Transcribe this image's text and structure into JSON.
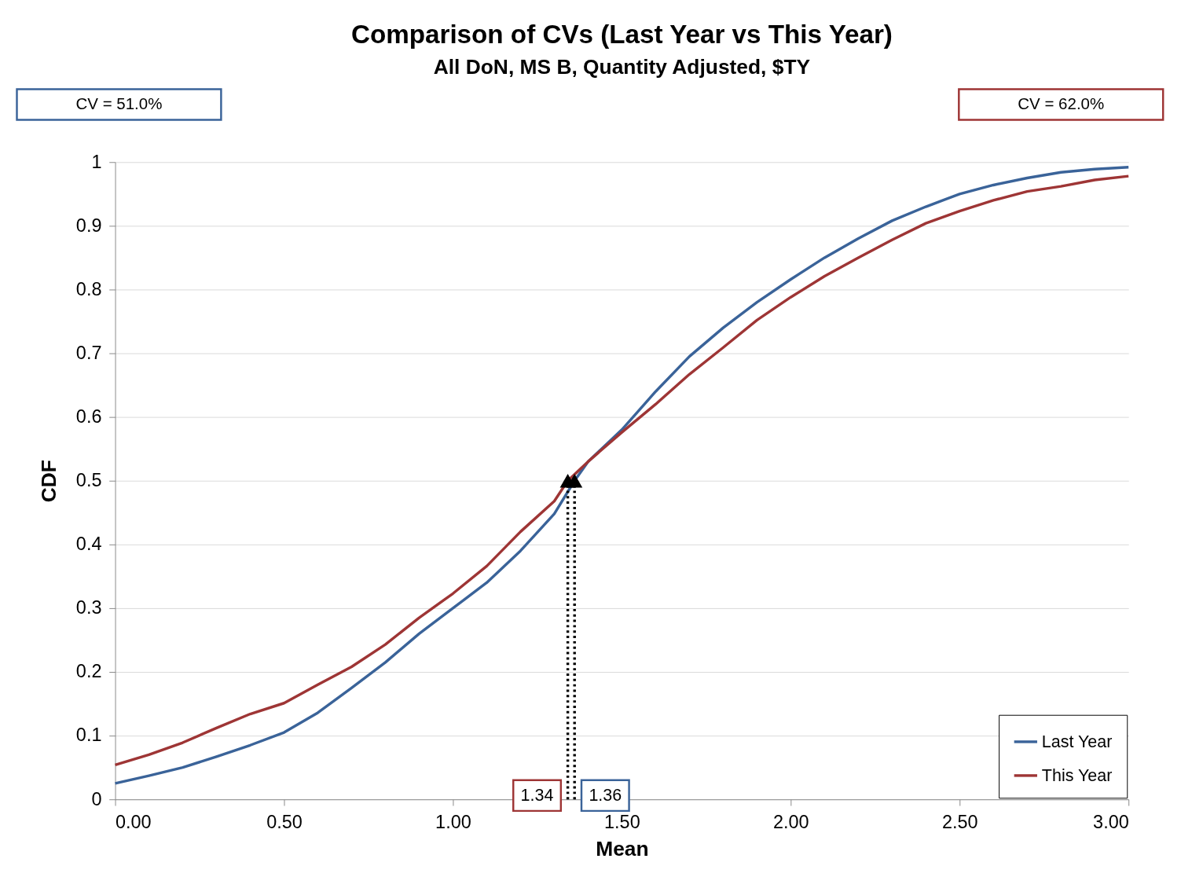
{
  "chart_data": {
    "type": "line",
    "title": "Comparison of CVs (Last Year vs This Year)",
    "subtitle": "All DoN, MS B, Quantity Adjusted, $TY",
    "xlabel": "Mean",
    "ylabel": "CDF",
    "xlim": [
      0,
      3
    ],
    "ylim": [
      0,
      1
    ],
    "xticks": [
      {
        "value": 0,
        "label": "0.00"
      },
      {
        "value": 0.5,
        "label": "0.50"
      },
      {
        "value": 1,
        "label": "1.00"
      },
      {
        "value": 1.5,
        "label": "1.50"
      },
      {
        "value": 2,
        "label": "2.00"
      },
      {
        "value": 2.5,
        "label": "2.50"
      },
      {
        "value": 3,
        "label": "3.00"
      }
    ],
    "yticks": [
      0,
      0.1,
      0.2,
      0.3,
      0.4,
      0.5,
      0.6,
      0.7,
      0.8,
      0.9,
      1
    ],
    "grid": "y",
    "legend": "bottom right",
    "marker": "none",
    "line_style": "solid",
    "series": [
      {
        "name": "Last Year",
        "color": "#3a6399",
        "x": [
          0,
          0.1,
          0.2,
          0.3,
          0.4,
          0.5,
          0.6,
          0.7,
          0.8,
          0.9,
          1.0,
          1.1,
          1.2,
          1.3,
          1.36,
          1.4,
          1.5,
          1.6,
          1.7,
          1.8,
          1.9,
          2.0,
          2.1,
          2.2,
          2.3,
          2.4,
          2.5,
          2.6,
          2.7,
          2.8,
          2.9,
          3.0
        ],
        "values": [
          0.025,
          0.037,
          0.05,
          0.067,
          0.085,
          0.105,
          0.136,
          0.175,
          0.215,
          0.26,
          0.3,
          0.34,
          0.39,
          0.448,
          0.5,
          0.53,
          0.58,
          0.64,
          0.695,
          0.74,
          0.78,
          0.816,
          0.85,
          0.88,
          0.908,
          0.93,
          0.95,
          0.964,
          0.975,
          0.984,
          0.989,
          0.992
        ]
      },
      {
        "name": "This Year",
        "color": "#9e3535",
        "x": [
          0,
          0.1,
          0.2,
          0.3,
          0.4,
          0.5,
          0.6,
          0.7,
          0.8,
          0.9,
          1.0,
          1.1,
          1.2,
          1.3,
          1.34,
          1.4,
          1.5,
          1.6,
          1.7,
          1.8,
          1.9,
          2.0,
          2.1,
          2.2,
          2.3,
          2.4,
          2.5,
          2.6,
          2.7,
          2.8,
          2.9,
          3.0
        ],
        "values": [
          0.054,
          0.07,
          0.089,
          0.112,
          0.134,
          0.151,
          0.18,
          0.208,
          0.243,
          0.285,
          0.323,
          0.366,
          0.42,
          0.468,
          0.5,
          0.53,
          0.576,
          0.62,
          0.667,
          0.709,
          0.752,
          0.788,
          0.821,
          0.85,
          0.878,
          0.904,
          0.923,
          0.94,
          0.954,
          0.962,
          0.972,
          0.978
        ]
      },
      {
        "type": "line",
        "color": "#000000",
        "line_style": "dotted",
        "x": [
          1.34,
          1.34
        ],
        "values": [
          0,
          0.5
        ]
      },
      {
        "type": "line",
        "color": "#000000",
        "line_style": "dotted",
        "x": [
          1.36,
          1.36
        ],
        "values": [
          0,
          0.5
        ]
      },
      {
        "type": "scatter",
        "color": "#000000",
        "marker": "triangle",
        "x": [
          1.34,
          1.36
        ],
        "values": [
          0.5,
          0.5
        ]
      }
    ],
    "annotations": [
      "CV = 51.0%",
      "CV = 62.0%",
      {
        "text": "1.34",
        "x": 1.34,
        "y": 0
      },
      {
        "text": "1.36",
        "x": 1.36,
        "y": 0
      }
    ]
  }
}
